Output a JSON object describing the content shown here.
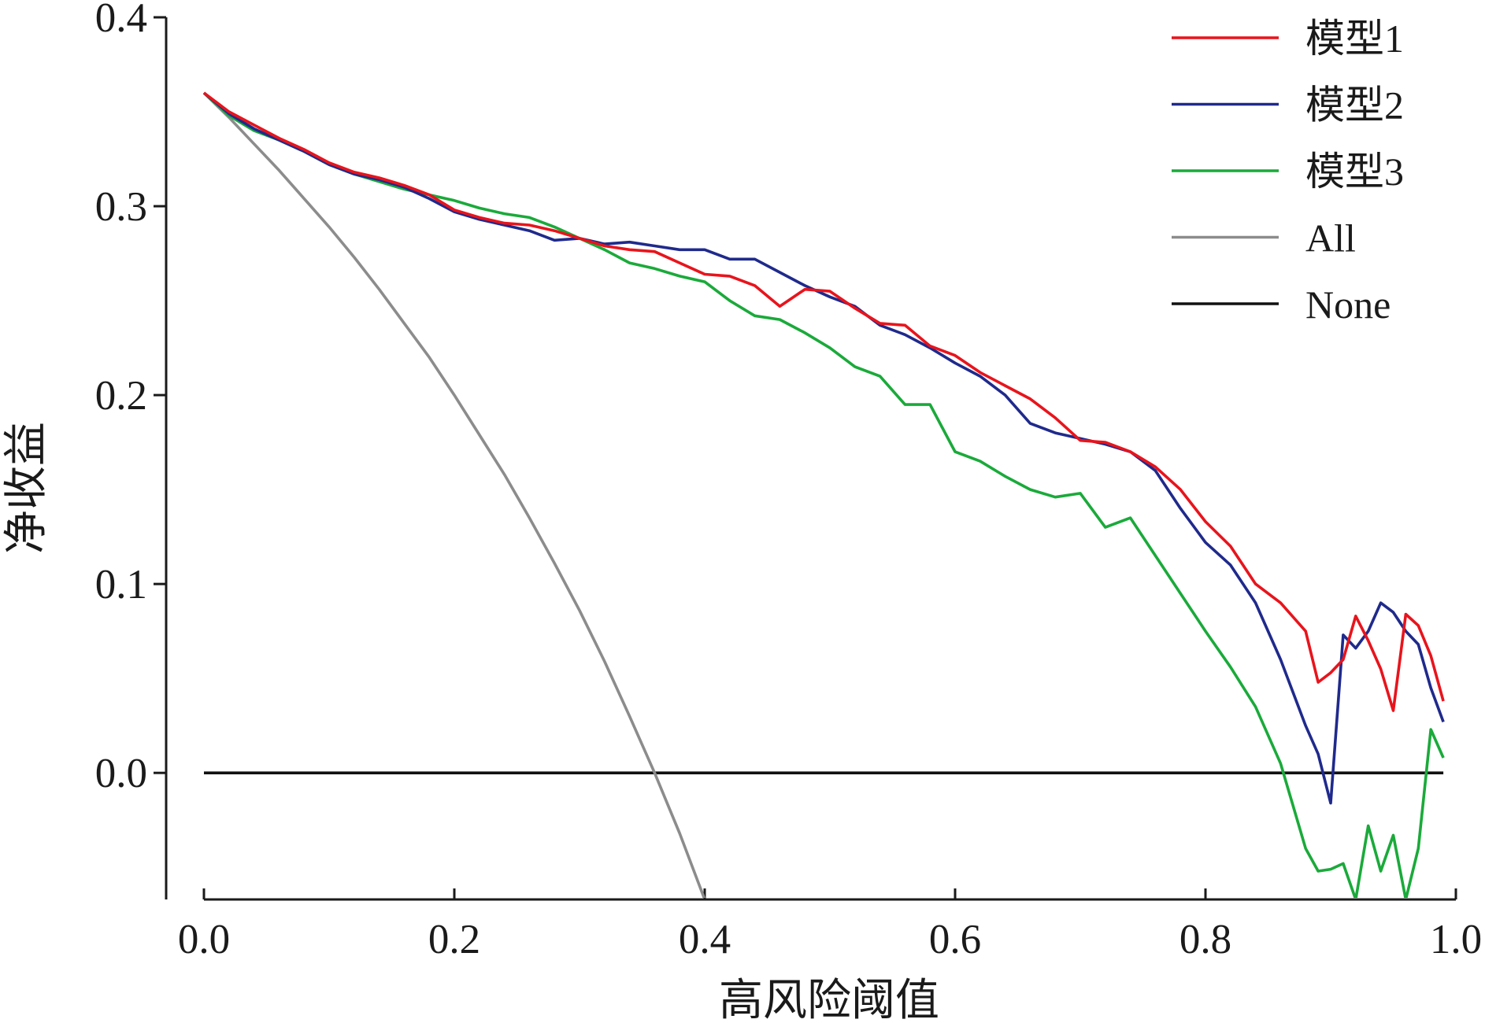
{
  "chart_data": {
    "type": "line",
    "x_label": "高风险阈值",
    "y_label": "净收益",
    "x": [
      0,
      0.02,
      0.04,
      0.06,
      0.08,
      0.1,
      0.12,
      0.14,
      0.16,
      0.18,
      0.2,
      0.22,
      0.24,
      0.26,
      0.28,
      0.3,
      0.32,
      0.34,
      0.36,
      0.38,
      0.4,
      0.42,
      0.44,
      0.46,
      0.48,
      0.5,
      0.52,
      0.54,
      0.56,
      0.58,
      0.6,
      0.62,
      0.64,
      0.66,
      0.68,
      0.7,
      0.72,
      0.74,
      0.76,
      0.78,
      0.8,
      0.82,
      0.84,
      0.86,
      0.88,
      0.89,
      0.9,
      0.91,
      0.92,
      0.93,
      0.94,
      0.95,
      0.96,
      0.97,
      0.98,
      0.99
    ],
    "series": [
      {
        "name": "模型1",
        "color": "#e8141c",
        "values": [
          0.36,
          0.35,
          0.343,
          0.336,
          0.33,
          0.323,
          0.318,
          0.315,
          0.311,
          0.306,
          0.298,
          0.294,
          0.291,
          0.29,
          0.287,
          0.283,
          0.279,
          0.277,
          0.276,
          0.27,
          0.264,
          0.263,
          0.258,
          0.247,
          0.256,
          0.255,
          0.246,
          0.238,
          0.237,
          0.226,
          0.221,
          0.212,
          0.205,
          0.198,
          0.188,
          0.176,
          0.175,
          0.17,
          0.162,
          0.15,
          0.133,
          0.12,
          0.1,
          0.09,
          0.075,
          0.048,
          0.053,
          0.06,
          0.083,
          0.07,
          0.055,
          0.033,
          0.084,
          0.078,
          0.062,
          0.038
        ]
      },
      {
        "name": "模型2",
        "color": "#1f2a8c",
        "values": [
          0.36,
          0.349,
          0.341,
          0.335,
          0.329,
          0.322,
          0.317,
          0.314,
          0.31,
          0.304,
          0.297,
          0.293,
          0.29,
          0.287,
          0.282,
          0.283,
          0.28,
          0.281,
          0.279,
          0.277,
          0.277,
          0.272,
          0.272,
          0.265,
          0.258,
          0.252,
          0.247,
          0.237,
          0.232,
          0.225,
          0.217,
          0.21,
          0.2,
          0.185,
          0.18,
          0.177,
          0.174,
          0.17,
          0.16,
          0.14,
          0.122,
          0.11,
          0.09,
          0.06,
          0.025,
          0.01,
          -0.016,
          0.073,
          0.066,
          0.075,
          0.09,
          0.085,
          0.075,
          0.068,
          0.045,
          0.027
        ]
      },
      {
        "name": "模型3",
        "color": "#1aaa3a",
        "values": [
          0.36,
          0.348,
          0.34,
          0.335,
          0.329,
          0.322,
          0.317,
          0.313,
          0.309,
          0.306,
          0.303,
          0.299,
          0.296,
          0.294,
          0.289,
          0.283,
          0.277,
          0.27,
          0.267,
          0.263,
          0.26,
          0.25,
          0.242,
          0.24,
          0.233,
          0.225,
          0.215,
          0.21,
          0.195,
          0.195,
          0.17,
          0.165,
          0.157,
          0.15,
          0.146,
          0.148,
          0.13,
          0.135,
          0.115,
          0.095,
          0.075,
          0.056,
          0.035,
          0.005,
          -0.04,
          -0.052,
          -0.051,
          -0.048,
          -0.067,
          -0.028,
          -0.052,
          -0.033,
          -0.067,
          -0.04,
          0.023,
          0.008
        ]
      },
      {
        "name": "All",
        "color": "#8c8c8c",
        "values": [
          0.36,
          0.347,
          0.333,
          0.319,
          0.304,
          0.289,
          0.273,
          0.256,
          0.238,
          0.22,
          0.2,
          0.179,
          0.158,
          0.135,
          0.111,
          0.086,
          0.059,
          0.03,
          0,
          -0.032,
          -0.067,
          null,
          null,
          null,
          null,
          null,
          null,
          null,
          null,
          null,
          null,
          null,
          null,
          null,
          null,
          null,
          null,
          null,
          null,
          null,
          null,
          null,
          null,
          null,
          null,
          null,
          null,
          null,
          null,
          null,
          null,
          null,
          null,
          null,
          null,
          null
        ]
      },
      {
        "name": "None",
        "color": "#111111",
        "values": [
          0,
          0,
          0,
          0,
          0,
          0,
          0,
          0,
          0,
          0,
          0,
          0,
          0,
          0,
          0,
          0,
          0,
          0,
          0,
          0,
          0,
          0,
          0,
          0,
          0,
          0,
          0,
          0,
          0,
          0,
          0,
          0,
          0,
          0,
          0,
          0,
          0,
          0,
          0,
          0,
          0,
          0,
          0,
          0,
          0,
          0,
          0,
          0,
          0,
          0,
          0,
          0,
          0,
          0,
          0,
          0
        ]
      }
    ],
    "xlim": [
      0,
      1.0
    ],
    "xticks": [
      {
        "value": 0,
        "label": "0.0"
      },
      {
        "value": 0.2,
        "label": "0.2"
      },
      {
        "value": 0.4,
        "label": "0.4"
      },
      {
        "value": 0.6,
        "label": "0.6"
      },
      {
        "value": 0.8,
        "label": "0.8"
      },
      {
        "value": 1.0,
        "label": "1.0"
      }
    ],
    "ylim": [
      -0.067,
      0.4
    ],
    "yticks": [
      {
        "value": 0,
        "label": "0.0"
      },
      {
        "value": 0.1,
        "label": "0.1"
      },
      {
        "value": 0.2,
        "label": "0.2"
      },
      {
        "value": 0.3,
        "label": "0.3"
      },
      {
        "value": 0.4,
        "label": "0.4"
      }
    ],
    "legend": "upper right",
    "grid": false
  }
}
